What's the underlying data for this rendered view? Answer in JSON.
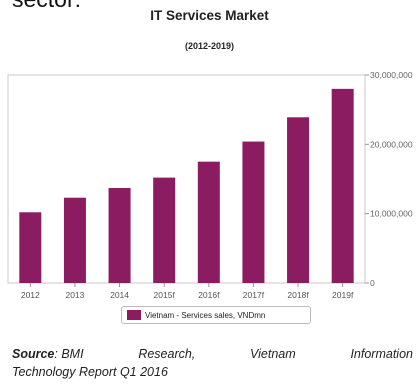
{
  "header_fragment": "sector:",
  "chart_data": {
    "type": "bar",
    "title": "IT Services Market",
    "subtitle": "(2012-2019)",
    "categories": [
      "2012",
      "2013",
      "2014",
      "2015f",
      "2016f",
      "2017f",
      "2018f",
      "2019f"
    ],
    "series": [
      {
        "name": "Vietnam - Services sales, VNDmn",
        "values": [
          10200000,
          12300000,
          13700000,
          15200000,
          17500000,
          20400000,
          23900000,
          28000000
        ]
      }
    ],
    "ylim": [
      0,
      30000000
    ],
    "yticks": [
      0,
      10000000,
      20000000,
      30000000
    ],
    "ytick_labels": [
      "0",
      "10,000,000",
      "20,000,000",
      "30,000,000"
    ],
    "y_axis_side": "right",
    "grid": false,
    "legend_position": "bottom",
    "bar_color": "#8b1c62"
  },
  "source": {
    "label": "Source",
    "line1_words": [
      ": BMI",
      "Research,",
      "Vietnam",
      "Information"
    ],
    "line2": "Technology Report Q1 2016"
  }
}
